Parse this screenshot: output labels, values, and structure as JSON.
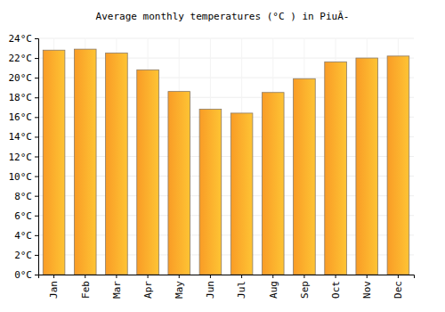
{
  "chart_data": {
    "type": "bar",
    "title": "Average monthly temperatures (°C ) in PiuÃ-",
    "categories": [
      "Jan",
      "Feb",
      "Mar",
      "Apr",
      "May",
      "Jun",
      "Jul",
      "Aug",
      "Sep",
      "Oct",
      "Nov",
      "Dec"
    ],
    "values": [
      22.8,
      22.9,
      22.5,
      20.8,
      18.6,
      16.8,
      16.4,
      18.5,
      19.9,
      21.6,
      22.0,
      22.2
    ],
    "color": "#fdae2c",
    "ylim": [
      0,
      24
    ],
    "yticks": [
      {
        "value": 0,
        "label": "0°C"
      },
      {
        "value": 2,
        "label": "2°C"
      },
      {
        "value": 4,
        "label": "4°C"
      },
      {
        "value": 6,
        "label": "6°C"
      },
      {
        "value": 8,
        "label": "8°C"
      },
      {
        "value": 10,
        "label": "10°C"
      },
      {
        "value": 12,
        "label": "12°C"
      },
      {
        "value": 14,
        "label": "14°C"
      },
      {
        "value": 16,
        "label": "16°C"
      },
      {
        "value": 18,
        "label": "18°C"
      },
      {
        "value": 20,
        "label": "20°C"
      },
      {
        "value": 22,
        "label": "22°C"
      },
      {
        "value": 24,
        "label": "24°C"
      }
    ],
    "grid": true
  }
}
